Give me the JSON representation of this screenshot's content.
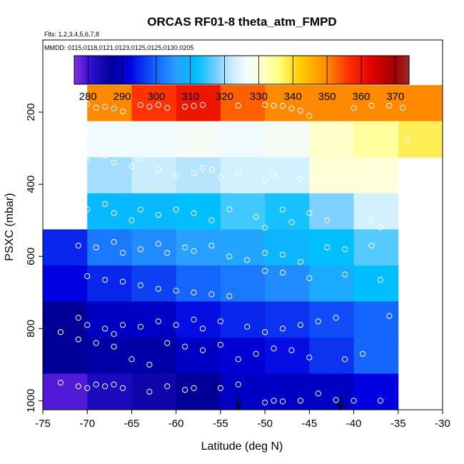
{
  "chart_data": {
    "type": "heatmap",
    "title": "ORCAS RF01-8 theta_atm_FMPD",
    "flights_note": "Flts: 1,2,3,4,5,6,7,8",
    "dates_note": "MMDD: 0115,0118,0121,0123,0125,0125,0130,0205",
    "xlabel": "Latitude (deg N)",
    "ylabel": "PSXC (mbar)",
    "xlim": [
      -75,
      -30
    ],
    "ylim": [
      1025,
      0
    ],
    "x_ticks": [
      -75,
      -70,
      -65,
      -60,
      -55,
      -50,
      -45,
      -40,
      -35,
      -30
    ],
    "y_ticks": [
      200,
      400,
      600,
      800,
      1000
    ],
    "colorbar": {
      "range": [
        276,
        374
      ],
      "ticks": [
        280,
        290,
        300,
        310,
        320,
        330,
        340,
        350,
        360,
        370
      ],
      "stops": [
        {
          "v": 276,
          "c": "#8a2be2"
        },
        {
          "v": 281,
          "c": "#2a0fd0"
        },
        {
          "v": 287,
          "c": "#000099"
        },
        {
          "v": 292,
          "c": "#0000e0"
        },
        {
          "v": 300,
          "c": "#1565ff"
        },
        {
          "v": 306,
          "c": "#27a0ff"
        },
        {
          "v": 312,
          "c": "#00bfff"
        },
        {
          "v": 318,
          "c": "#7fd0ff"
        },
        {
          "v": 322,
          "c": "#c9ecff"
        },
        {
          "v": 326,
          "c": "#f0fbff"
        },
        {
          "v": 330,
          "c": "#ffffd8"
        },
        {
          "v": 336,
          "c": "#ffff80"
        },
        {
          "v": 342,
          "c": "#ffcc00"
        },
        {
          "v": 350,
          "c": "#ff8a00"
        },
        {
          "v": 356,
          "c": "#ff3300"
        },
        {
          "v": 363,
          "c": "#e00000"
        },
        {
          "v": 370,
          "c": "#a30000"
        },
        {
          "v": 374,
          "c": "#9e2a2a"
        }
      ]
    },
    "lat_bins": [
      -75,
      -70,
      -65,
      -60,
      -55,
      -50,
      -45,
      -40,
      -35,
      -30
    ],
    "pres_bins": [
      125,
      225,
      325,
      425,
      525,
      625,
      725,
      825,
      925,
      1025
    ],
    "cells": [
      [
        null,
        350,
        356,
        360,
        353,
        350,
        350,
        350,
        350
      ],
      [
        null,
        326,
        326,
        327,
        326,
        327,
        331,
        334,
        338
      ],
      [
        null,
        320,
        322,
        321,
        323,
        323,
        330,
        330,
        null
      ],
      [
        null,
        311,
        311,
        312,
        315,
        313,
        318,
        323,
        null
      ],
      [
        295,
        302,
        304,
        306,
        307,
        310,
        312,
        316,
        null
      ],
      [
        292,
        295,
        297,
        300,
        302,
        304,
        308,
        312,
        null
      ],
      [
        287,
        290,
        290,
        293,
        295,
        296,
        298,
        300,
        null
      ],
      [
        287,
        288,
        288,
        290,
        291,
        293,
        296,
        300,
        null
      ],
      [
        279,
        283,
        285,
        287,
        290,
        290,
        290,
        292,
        null
      ]
    ],
    "arrows": [
      {
        "lat": -53,
        "pres": 1000
      },
      {
        "lat": -41.5,
        "pres": 1000
      }
    ],
    "observations": [
      [
        -70,
        178
      ],
      [
        -69,
        188
      ],
      [
        -68,
        185
      ],
      [
        -67,
        190
      ],
      [
        -66,
        198
      ],
      [
        -64,
        180
      ],
      [
        -63,
        185
      ],
      [
        -62,
        180
      ],
      [
        -61,
        188
      ],
      [
        -59,
        185
      ],
      [
        -58,
        183
      ],
      [
        -57,
        180
      ],
      [
        -53,
        182
      ],
      [
        -50,
        180
      ],
      [
        -49,
        182
      ],
      [
        -48,
        183
      ],
      [
        -47,
        190
      ],
      [
        -46,
        196
      ],
      [
        -45,
        210
      ],
      [
        -40,
        188
      ],
      [
        -38,
        182
      ],
      [
        -36,
        182
      ],
      [
        -34.5,
        188
      ],
      [
        -70,
        260
      ],
      [
        -68,
        265
      ],
      [
        -67,
        270
      ],
      [
        -66,
        280
      ],
      [
        -63,
        270
      ],
      [
        -61,
        265
      ],
      [
        -59,
        262
      ],
      [
        -57,
        265
      ],
      [
        -55,
        270
      ],
      [
        -53,
        278
      ],
      [
        -50,
        262
      ],
      [
        -48,
        278
      ],
      [
        -46,
        270
      ],
      [
        -45,
        290
      ],
      [
        -34,
        275
      ],
      [
        -70,
        335
      ],
      [
        -68,
        320
      ],
      [
        -67,
        340
      ],
      [
        -65,
        350
      ],
      [
        -64,
        330
      ],
      [
        -62,
        360
      ],
      [
        -60,
        375
      ],
      [
        -58,
        370
      ],
      [
        -57,
        355
      ],
      [
        -56,
        360
      ],
      [
        -55,
        380
      ],
      [
        -53,
        370
      ],
      [
        -50,
        390
      ],
      [
        -49,
        375
      ],
      [
        -46,
        385
      ],
      [
        -44,
        395
      ],
      [
        -41,
        380
      ],
      [
        -38,
        370
      ],
      [
        -36,
        390
      ],
      [
        -35,
        410
      ],
      [
        -70,
        470
      ],
      [
        -68,
        455
      ],
      [
        -67,
        480
      ],
      [
        -65,
        500
      ],
      [
        -64,
        470
      ],
      [
        -62,
        485
      ],
      [
        -60,
        470
      ],
      [
        -58,
        480
      ],
      [
        -56,
        500
      ],
      [
        -54,
        470
      ],
      [
        -51,
        490
      ],
      [
        -50,
        520
      ],
      [
        -48,
        470
      ],
      [
        -47,
        505
      ],
      [
        -45,
        480
      ],
      [
        -43,
        500
      ],
      [
        -38,
        500
      ],
      [
        -37,
        520
      ],
      [
        -71,
        570
      ],
      [
        -69,
        575
      ],
      [
        -67,
        560
      ],
      [
        -66,
        590
      ],
      [
        -64,
        580
      ],
      [
        -62,
        565
      ],
      [
        -61,
        590
      ],
      [
        -59,
        575
      ],
      [
        -58,
        585
      ],
      [
        -56,
        570
      ],
      [
        -54,
        600
      ],
      [
        -52,
        610
      ],
      [
        -50,
        590
      ],
      [
        -48,
        595
      ],
      [
        -46,
        615
      ],
      [
        -43,
        575
      ],
      [
        -41,
        580
      ],
      [
        -38,
        570
      ],
      [
        -70,
        655
      ],
      [
        -68,
        665
      ],
      [
        -66,
        670
      ],
      [
        -64,
        680
      ],
      [
        -62,
        690
      ],
      [
        -60,
        695
      ],
      [
        -58,
        700
      ],
      [
        -56,
        705
      ],
      [
        -54,
        710
      ],
      [
        -50,
        640
      ],
      [
        -48,
        645
      ],
      [
        -45,
        660
      ],
      [
        -41,
        650
      ],
      [
        -37,
        665
      ],
      [
        -73,
        810
      ],
      [
        -71,
        770
      ],
      [
        -70,
        790
      ],
      [
        -68,
        800
      ],
      [
        -67,
        815
      ],
      [
        -66,
        790
      ],
      [
        -64,
        795
      ],
      [
        -62,
        780
      ],
      [
        -60,
        790
      ],
      [
        -58,
        775
      ],
      [
        -57,
        800
      ],
      [
        -55,
        780
      ],
      [
        -52,
        795
      ],
      [
        -50,
        810
      ],
      [
        -48,
        800
      ],
      [
        -46,
        790
      ],
      [
        -44,
        780
      ],
      [
        -42,
        770
      ],
      [
        -36,
        765
      ],
      [
        -71,
        830
      ],
      [
        -69,
        840
      ],
      [
        -67,
        850
      ],
      [
        -65,
        885
      ],
      [
        -63,
        900
      ],
      [
        -61,
        840
      ],
      [
        -59,
        850
      ],
      [
        -57,
        860
      ],
      [
        -55,
        845
      ],
      [
        -53,
        885
      ],
      [
        -51,
        870
      ],
      [
        -49,
        855
      ],
      [
        -47,
        860
      ],
      [
        -45,
        880
      ],
      [
        -41,
        885
      ],
      [
        -39,
        870
      ],
      [
        -73,
        950
      ],
      [
        -71,
        960
      ],
      [
        -70,
        965
      ],
      [
        -69,
        955
      ],
      [
        -68,
        960
      ],
      [
        -67,
        955
      ],
      [
        -66,
        965
      ],
      [
        -63,
        975
      ],
      [
        -61,
        960
      ],
      [
        -59,
        970
      ],
      [
        -58,
        965
      ],
      [
        -55,
        965
      ],
      [
        -53,
        955
      ],
      [
        -50,
        1005
      ],
      [
        -49,
        1000
      ],
      [
        -48,
        1002
      ],
      [
        -46,
        1000
      ],
      [
        -44,
        980
      ],
      [
        -42,
        998
      ],
      [
        -40,
        1000
      ],
      [
        -37,
        1000
      ]
    ]
  }
}
